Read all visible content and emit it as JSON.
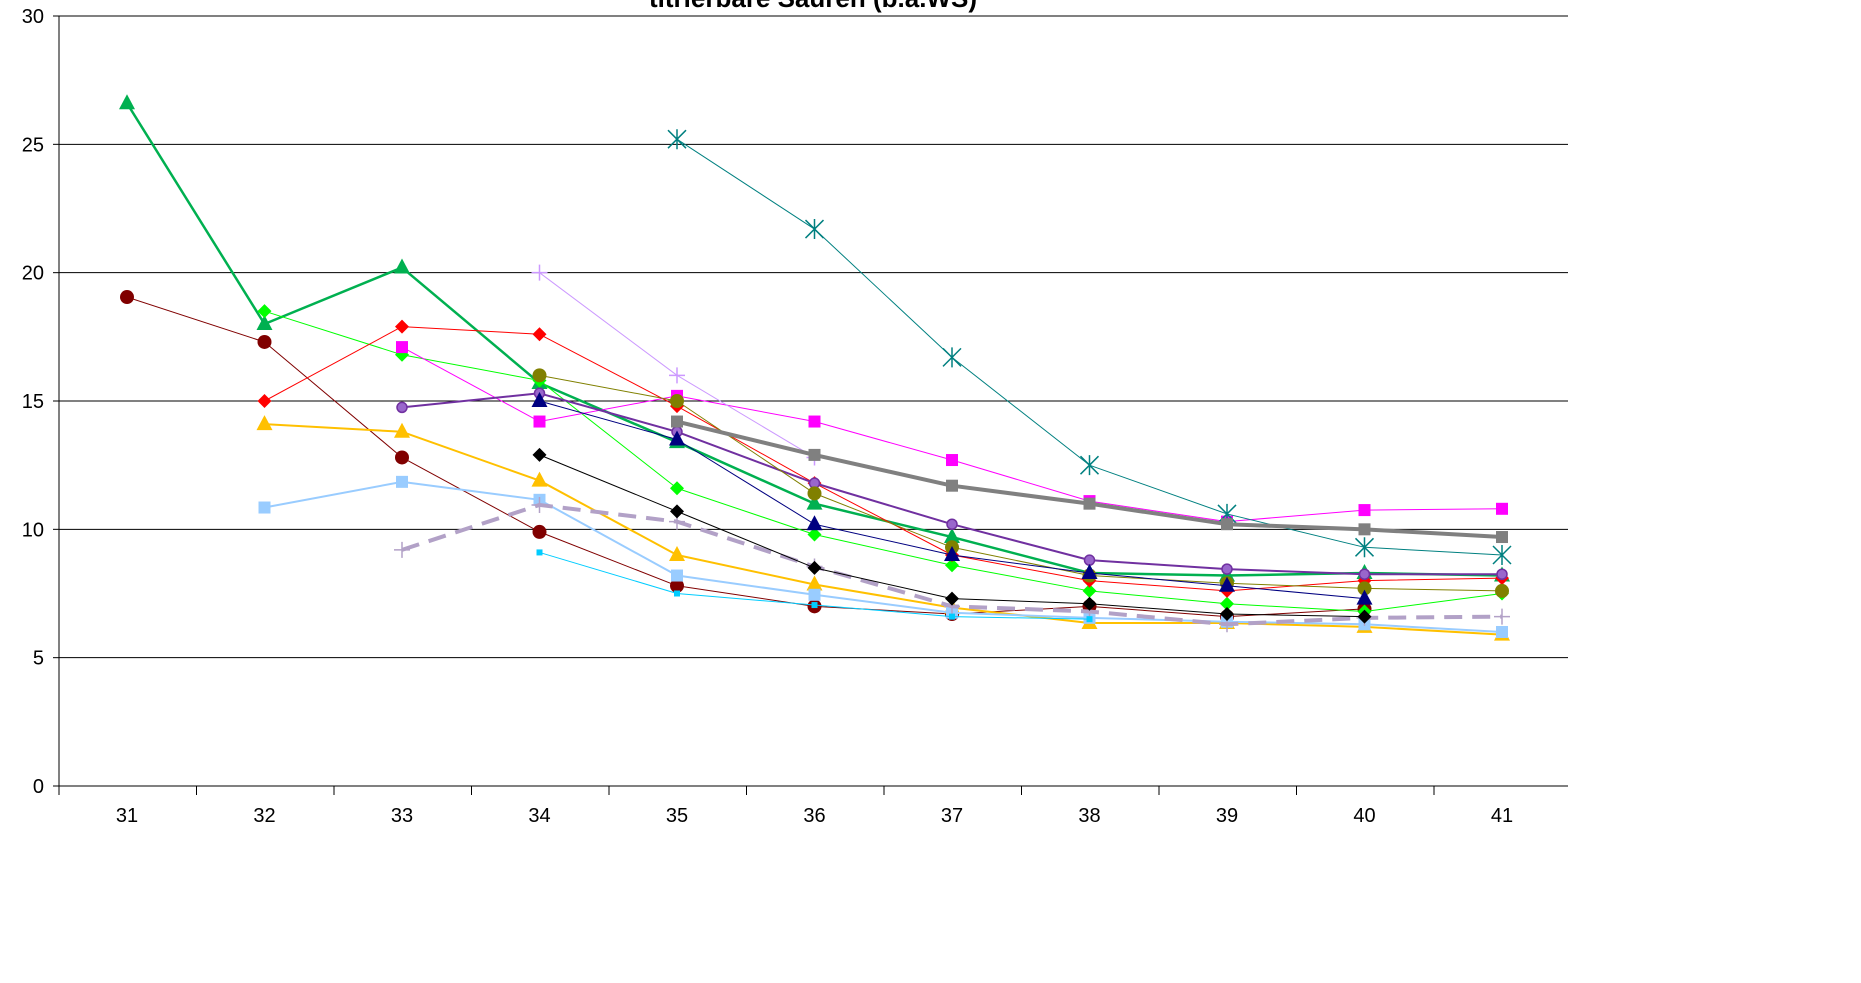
{
  "chart_data": {
    "type": "line",
    "title": "titrierbare Säuren (b.a.WS)",
    "xlabel": "",
    "ylabel": "",
    "x": [
      31,
      32,
      33,
      34,
      35,
      36,
      37,
      38,
      39,
      40,
      41
    ],
    "ylim": [
      0,
      30
    ],
    "yticks": [
      0,
      5,
      10,
      15,
      20,
      25,
      30
    ],
    "grid": true,
    "legend": "none",
    "series": [
      {
        "color": "#00B050",
        "marker": "triangle",
        "width": 2.5,
        "dash": "",
        "values": [
          26.6,
          18.0,
          20.2,
          15.7,
          13.4,
          11.0,
          9.7,
          8.3,
          8.2,
          8.3,
          8.2
        ]
      },
      {
        "color": "#800000",
        "marker": "circle",
        "width": 1,
        "dash": "",
        "values": [
          19.05,
          17.3,
          12.8,
          9.9,
          7.8,
          7.0,
          6.7,
          7.0,
          6.6,
          6.9,
          null
        ]
      },
      {
        "color": "#00FF00",
        "marker": "diamond",
        "width": 1,
        "dash": "",
        "values": [
          null,
          18.5,
          16.8,
          15.8,
          11.6,
          9.8,
          8.6,
          7.6,
          7.1,
          6.8,
          7.5
        ]
      },
      {
        "color": "#FF0000",
        "marker": "diamond",
        "width": 1,
        "dash": "",
        "values": [
          null,
          15.0,
          17.9,
          17.6,
          14.8,
          11.8,
          9.0,
          8.0,
          7.6,
          8.0,
          8.1
        ]
      },
      {
        "color": "#FFC000",
        "marker": "triangle",
        "width": 2,
        "dash": "",
        "values": [
          null,
          14.1,
          13.8,
          11.9,
          9.0,
          7.85,
          6.95,
          6.35,
          6.35,
          6.2,
          5.9
        ]
      },
      {
        "color": "#99CCFF",
        "marker": "square",
        "width": 2,
        "dash": "",
        "values": [
          null,
          10.85,
          11.85,
          11.15,
          8.2,
          7.45,
          6.75,
          6.55,
          6.4,
          6.3,
          6.0
        ]
      },
      {
        "color": "#FF00FF",
        "marker": "square",
        "width": 1,
        "dash": "",
        "values": [
          null,
          null,
          17.1,
          14.2,
          15.2,
          14.2,
          12.7,
          11.1,
          10.3,
          10.75,
          10.8
        ]
      },
      {
        "color": "#7030A0",
        "marker": "circle-small",
        "width": 2,
        "dash": "",
        "values": [
          null,
          null,
          14.75,
          15.3,
          13.8,
          11.8,
          10.2,
          8.8,
          8.45,
          8.25,
          8.25
        ]
      },
      {
        "color": "#B2A1C7",
        "marker": "plus",
        "width": 4,
        "dash": "18,10",
        "values": [
          null,
          null,
          9.2,
          10.95,
          10.3,
          8.55,
          7.0,
          6.8,
          6.3,
          6.55,
          6.6
        ]
      },
      {
        "color": "#CC99FF",
        "marker": "plus",
        "width": 1,
        "dash": "",
        "values": [
          null,
          null,
          null,
          20.0,
          16.0,
          12.8,
          null,
          null,
          null,
          null,
          null
        ]
      },
      {
        "color": "#808000",
        "marker": "circle",
        "width": 1,
        "dash": "",
        "values": [
          null,
          null,
          null,
          16.0,
          15.0,
          11.4,
          9.3,
          8.2,
          7.9,
          7.7,
          7.6
        ]
      },
      {
        "color": "#000080",
        "marker": "triangle",
        "width": 1,
        "dash": "",
        "values": [
          null,
          null,
          null,
          15.0,
          13.5,
          10.2,
          9.0,
          8.3,
          7.8,
          7.3,
          null
        ]
      },
      {
        "color": "#000000",
        "marker": "diamond",
        "width": 1,
        "dash": "",
        "values": [
          null,
          null,
          null,
          12.9,
          10.7,
          8.5,
          7.3,
          7.1,
          6.7,
          6.6,
          null
        ]
      },
      {
        "color": "#00CCFF",
        "marker": "square-small",
        "width": 1,
        "dash": "",
        "values": [
          null,
          null,
          null,
          9.1,
          7.5,
          7.05,
          6.6,
          6.5,
          null,
          null,
          null
        ]
      },
      {
        "color": "#008080",
        "marker": "star",
        "width": 1,
        "dash": "",
        "values": [
          null,
          null,
          null,
          null,
          25.2,
          21.7,
          16.7,
          12.5,
          10.6,
          9.3,
          9.0
        ]
      },
      {
        "color": "#808080",
        "marker": "square",
        "width": 4,
        "dash": "",
        "values": [
          null,
          null,
          null,
          null,
          14.2,
          12.9,
          11.7,
          11.0,
          10.2,
          10.0,
          9.7
        ]
      }
    ]
  }
}
